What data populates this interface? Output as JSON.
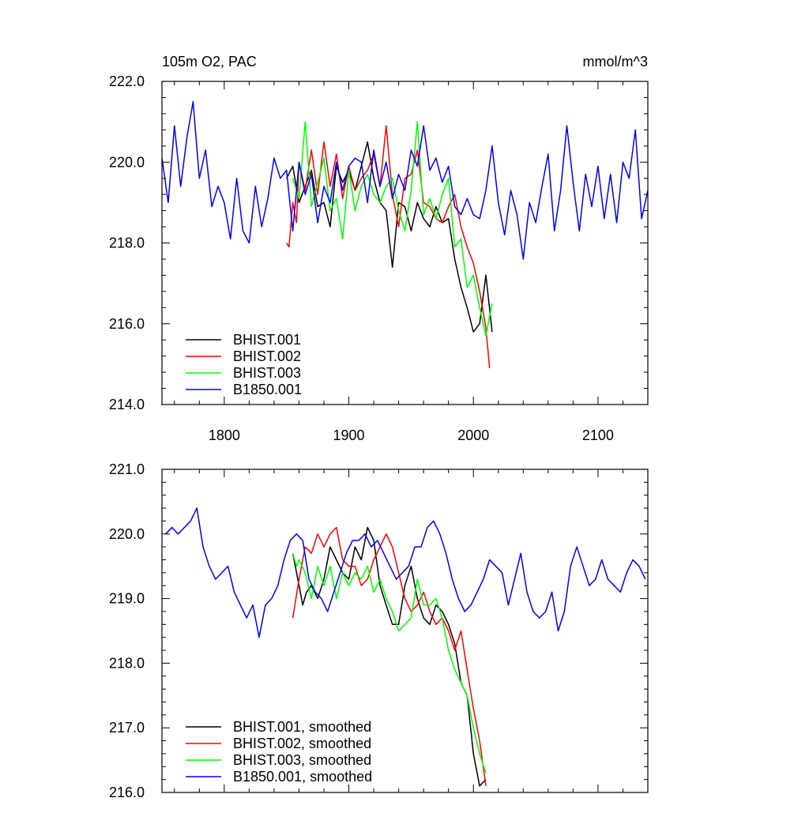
{
  "chart_data": [
    {
      "type": "line",
      "title": "105m O2, PAC",
      "units": "mmol/m^3",
      "xlim": [
        1750,
        2140
      ],
      "ylim": [
        214.0,
        222.0
      ],
      "x_ticks": [
        1800,
        1900,
        2000,
        2100
      ],
      "x_tick_labels": [
        "1800",
        "1900",
        "2000",
        "2100"
      ],
      "y_ticks": [
        214.0,
        216.0,
        218.0,
        220.0,
        222.0
      ],
      "y_tick_labels": [
        "214.0",
        "216.0",
        "218.0",
        "220.0",
        "222.0"
      ],
      "legend_position": "bottom-left",
      "series": [
        {
          "name": "BHIST.001",
          "color": "#000000",
          "x": [
            1850,
            1855,
            1860,
            1865,
            1870,
            1875,
            1880,
            1885,
            1890,
            1895,
            1900,
            1905,
            1910,
            1915,
            1920,
            1925,
            1930,
            1935,
            1940,
            1945,
            1950,
            1955,
            1960,
            1965,
            1970,
            1975,
            1980,
            1985,
            1990,
            1995,
            2000,
            2005,
            2010,
            2015
          ],
          "values": [
            219.6,
            219.9,
            219.0,
            219.4,
            219.8,
            218.9,
            219.0,
            218.4,
            219.9,
            219.5,
            219.8,
            219.3,
            219.9,
            220.5,
            219.6,
            219.0,
            218.8,
            217.4,
            219.0,
            218.9,
            218.3,
            219.0,
            218.6,
            218.4,
            218.9,
            218.5,
            218.6,
            217.6,
            216.9,
            216.4,
            215.8,
            216.0,
            217.2,
            215.8
          ]
        },
        {
          "name": "BHIST.002",
          "color": "#ff0000",
          "x": [
            1850,
            1852,
            1855,
            1858,
            1860,
            1865,
            1870,
            1875,
            1880,
            1885,
            1890,
            1895,
            1900,
            1905,
            1910,
            1915,
            1920,
            1925,
            1930,
            1935,
            1940,
            1945,
            1950,
            1955,
            1960,
            1965,
            1970,
            1975,
            1980,
            1985,
            1990,
            1995,
            2000,
            2005,
            2010,
            2013
          ],
          "values": [
            218.0,
            217.9,
            219.0,
            218.5,
            220.0,
            219.3,
            220.3,
            219.2,
            220.5,
            219.4,
            220.2,
            219.1,
            219.9,
            219.3,
            219.6,
            219.8,
            220.2,
            219.4,
            220.9,
            219.2,
            218.4,
            219.6,
            219.7,
            220.3,
            219.0,
            218.9,
            218.6,
            218.5,
            218.9,
            219.2,
            218.4,
            217.9,
            217.5,
            216.8,
            215.9,
            214.9
          ]
        },
        {
          "name": "BHIST.003",
          "color": "#00ff00",
          "x": [
            1855,
            1860,
            1865,
            1870,
            1875,
            1880,
            1885,
            1890,
            1895,
            1900,
            1905,
            1910,
            1915,
            1920,
            1925,
            1930,
            1935,
            1940,
            1945,
            1950,
            1955,
            1960,
            1965,
            1970,
            1975,
            1980,
            1985,
            1990,
            1995,
            2000,
            2005,
            2010,
            2015
          ],
          "values": [
            219.6,
            219.1,
            221.0,
            218.9,
            219.5,
            220.1,
            218.8,
            219.1,
            218.1,
            219.8,
            218.8,
            219.4,
            219.7,
            219.2,
            219.0,
            219.4,
            219.6,
            218.8,
            218.3,
            219.3,
            221.0,
            218.7,
            219.1,
            218.6,
            219.2,
            219.6,
            217.9,
            218.1,
            216.9,
            217.2,
            216.4,
            215.7,
            216.5
          ]
        },
        {
          "name": "B1850.001",
          "color": "#0000ff",
          "x": [
            1750,
            1755,
            1760,
            1765,
            1770,
            1775,
            1780,
            1785,
            1790,
            1795,
            1800,
            1805,
            1810,
            1815,
            1820,
            1825,
            1830,
            1835,
            1840,
            1845,
            1850,
            1855,
            1860,
            1865,
            1870,
            1875,
            1880,
            1885,
            1890,
            1895,
            1900,
            1905,
            1910,
            1915,
            1920,
            1925,
            1930,
            1935,
            1940,
            1945,
            1950,
            1955,
            1960,
            1965,
            1970,
            1975,
            1980,
            1985,
            1990,
            1995,
            2000,
            2005,
            2010,
            2015,
            2020,
            2025,
            2030,
            2035,
            2040,
            2045,
            2050,
            2055,
            2060,
            2065,
            2070,
            2075,
            2080,
            2085,
            2090,
            2095,
            2100,
            2105,
            2110,
            2115,
            2120,
            2125,
            2130,
            2135,
            2140
          ],
          "values": [
            220.1,
            219.0,
            220.9,
            219.4,
            220.6,
            221.5,
            219.6,
            220.3,
            218.9,
            219.4,
            219.0,
            218.1,
            219.6,
            218.3,
            218.0,
            219.4,
            218.4,
            219.1,
            220.1,
            219.6,
            219.8,
            218.3,
            220.0,
            219.2,
            219.7,
            218.5,
            219.4,
            219.0,
            220.0,
            219.3,
            219.9,
            220.1,
            220.0,
            219.0,
            220.3,
            219.4,
            220.0,
            219.1,
            219.7,
            219.3,
            220.3,
            219.9,
            220.9,
            219.8,
            220.1,
            219.5,
            219.9,
            218.9,
            218.7,
            219.1,
            218.7,
            218.6,
            219.3,
            220.4,
            219.0,
            218.2,
            219.3,
            218.7,
            217.6,
            219.0,
            218.5,
            219.4,
            220.2,
            218.3,
            219.3,
            220.9,
            219.5,
            218.3,
            219.7,
            218.9,
            219.9,
            218.6,
            219.7,
            218.5,
            220.0,
            219.6,
            220.8,
            218.6,
            219.3
          ]
        }
      ]
    },
    {
      "type": "line",
      "title": "",
      "units": "",
      "xlim": [
        1750,
        2140
      ],
      "ylim": [
        216.0,
        221.0
      ],
      "x_ticks": [
        1800,
        1900,
        2000,
        2100
      ],
      "x_tick_labels": [],
      "y_ticks": [
        216.0,
        217.0,
        218.0,
        219.0,
        220.0,
        221.0
      ],
      "y_tick_labels": [
        "216.0",
        "217.0",
        "218.0",
        "219.0",
        "220.0",
        "221.0"
      ],
      "legend_position": "bottom-left",
      "series": [
        {
          "name": "BHIST.001, smoothed",
          "color": "#000000",
          "x": [
            1855,
            1860,
            1863,
            1866,
            1870,
            1875,
            1880,
            1885,
            1890,
            1895,
            1900,
            1905,
            1910,
            1915,
            1920,
            1925,
            1930,
            1935,
            1940,
            1945,
            1950,
            1955,
            1960,
            1965,
            1970,
            1975,
            1980,
            1985,
            1990,
            1995,
            2000,
            2005,
            2010
          ],
          "values": [
            219.7,
            219.2,
            218.9,
            219.1,
            219.2,
            219.0,
            219.3,
            219.8,
            219.6,
            219.4,
            219.3,
            219.8,
            219.6,
            220.1,
            219.9,
            219.2,
            218.9,
            218.6,
            218.6,
            219.2,
            219.5,
            219.0,
            218.7,
            218.6,
            218.9,
            218.8,
            218.6,
            218.3,
            217.7,
            217.5,
            216.6,
            216.1,
            216.2
          ]
        },
        {
          "name": "BHIST.002, smoothed",
          "color": "#ff0000",
          "x": [
            1855,
            1860,
            1865,
            1870,
            1875,
            1880,
            1885,
            1890,
            1895,
            1900,
            1905,
            1910,
            1915,
            1920,
            1925,
            1930,
            1935,
            1940,
            1945,
            1950,
            1955,
            1960,
            1965,
            1970,
            1975,
            1980,
            1985,
            1990,
            1995,
            2000,
            2005,
            2010
          ],
          "values": [
            218.7,
            219.3,
            219.8,
            219.7,
            220.0,
            219.8,
            220.0,
            220.1,
            219.6,
            219.5,
            219.5,
            219.2,
            219.3,
            219.6,
            219.8,
            220.0,
            219.8,
            219.4,
            219.0,
            218.8,
            218.9,
            219.1,
            218.8,
            218.6,
            218.7,
            218.5,
            218.2,
            218.5,
            217.9,
            217.3,
            216.8,
            216.1
          ]
        },
        {
          "name": "BHIST.003, smoothed",
          "color": "#00ff00",
          "x": [
            1855,
            1858,
            1860,
            1865,
            1870,
            1875,
            1880,
            1885,
            1890,
            1895,
            1900,
            1905,
            1910,
            1915,
            1920,
            1925,
            1930,
            1935,
            1940,
            1945,
            1950,
            1955,
            1960,
            1965,
            1970,
            1975,
            1980,
            1985,
            1990,
            1995,
            2000,
            2005,
            2010
          ],
          "values": [
            219.7,
            219.5,
            219.6,
            219.4,
            219.0,
            219.5,
            219.2,
            219.5,
            219.0,
            219.4,
            219.2,
            219.4,
            219.3,
            219.5,
            219.1,
            219.3,
            219.0,
            218.8,
            218.5,
            218.6,
            218.7,
            219.3,
            218.9,
            218.9,
            219.0,
            218.7,
            218.2,
            217.9,
            217.7,
            217.5,
            217.0,
            216.6,
            216.3
          ]
        },
        {
          "name": "B1850.001, smoothed",
          "color": "#0000ff",
          "x": [
            1753,
            1758,
            1763,
            1768,
            1773,
            1778,
            1783,
            1788,
            1793,
            1798,
            1803,
            1808,
            1813,
            1818,
            1823,
            1828,
            1833,
            1838,
            1843,
            1848,
            1853,
            1858,
            1863,
            1868,
            1873,
            1878,
            1883,
            1888,
            1893,
            1898,
            1903,
            1908,
            1913,
            1918,
            1923,
            1928,
            1933,
            1938,
            1943,
            1948,
            1953,
            1958,
            1963,
            1968,
            1973,
            1978,
            1983,
            1988,
            1993,
            1998,
            2003,
            2008,
            2013,
            2018,
            2023,
            2028,
            2033,
            2038,
            2043,
            2048,
            2053,
            2058,
            2063,
            2068,
            2073,
            2078,
            2083,
            2088,
            2093,
            2098,
            2103,
            2108,
            2113,
            2118,
            2123,
            2128,
            2133,
            2138
          ],
          "values": [
            220.0,
            220.1,
            220.0,
            220.1,
            220.2,
            220.4,
            219.8,
            219.5,
            219.3,
            219.4,
            219.5,
            219.1,
            218.9,
            218.7,
            218.9,
            218.4,
            218.9,
            219.0,
            219.2,
            219.6,
            219.9,
            220.0,
            219.9,
            219.3,
            219.1,
            219.0,
            218.8,
            219.1,
            219.4,
            219.7,
            219.9,
            219.9,
            220.0,
            219.8,
            219.9,
            219.7,
            219.5,
            219.3,
            219.4,
            219.5,
            219.8,
            219.8,
            220.1,
            220.2,
            220.0,
            219.7,
            219.3,
            219.0,
            218.8,
            218.9,
            219.1,
            219.3,
            219.6,
            219.5,
            219.4,
            218.9,
            219.3,
            219.7,
            219.1,
            218.8,
            218.7,
            218.8,
            219.1,
            218.5,
            218.8,
            219.5,
            219.8,
            219.5,
            219.2,
            219.3,
            219.6,
            219.3,
            219.2,
            219.1,
            219.4,
            219.6,
            219.5,
            219.3
          ]
        }
      ]
    }
  ]
}
